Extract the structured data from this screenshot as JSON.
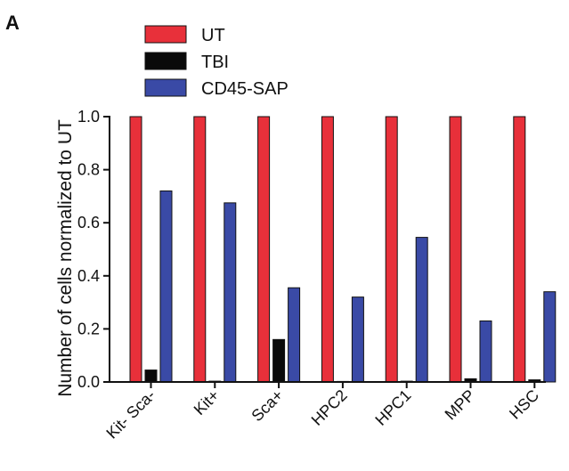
{
  "panel_label": "A",
  "colors": {
    "UT": "#e8303a",
    "TBI": "#0a0a0a",
    "CD45-SAP": "#3a4aa6"
  },
  "chart_data": {
    "type": "bar",
    "title": "",
    "xlabel": "",
    "ylabel": "Number of cells normalized to UT",
    "ylim": [
      0.0,
      1.0
    ],
    "yticks": [
      "0.0",
      "0.2",
      "0.4",
      "0.6",
      "0.8",
      "1.0"
    ],
    "ytick_values": [
      0.0,
      0.2,
      0.4,
      0.6,
      0.8,
      1.0
    ],
    "grid": false,
    "legend_position": "top-left",
    "categories": [
      "Kit- Sca-",
      "Kit+",
      "Sca+",
      "HPC2",
      "HPC1",
      "MPP",
      "HSC"
    ],
    "series": [
      {
        "name": "UT",
        "values": [
          1.0,
          1.0,
          1.0,
          1.0,
          1.0,
          1.0,
          1.0
        ]
      },
      {
        "name": "TBI",
        "values": [
          0.045,
          0.003,
          0.16,
          0.002,
          0.003,
          0.012,
          0.008
        ]
      },
      {
        "name": "CD45-SAP",
        "values": [
          0.72,
          0.675,
          0.355,
          0.32,
          0.545,
          0.23,
          0.34
        ]
      }
    ]
  }
}
